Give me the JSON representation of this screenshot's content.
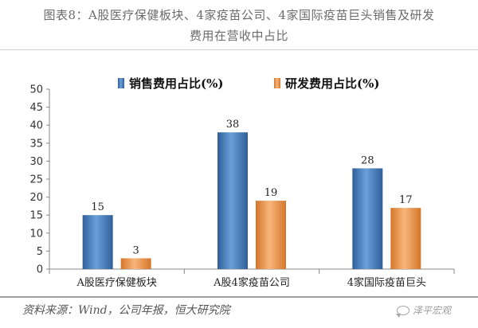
{
  "header": {
    "title_line1": "图表8：A股医疗保健板块、4家疫苗公司、4家国际疫苗巨头销售及研发",
    "title_line2": "费用在营收中占比"
  },
  "footer": {
    "source": "资料来源：Wind，公司年报，恒大研究院",
    "watermark_text": "泽平宏观",
    "watermark_icon": "wechat-bubble-icon"
  },
  "chart_data": {
    "type": "bar",
    "categories": [
      "A股医疗保健板块",
      "A股4家疫苗公司",
      "4家国际疫苗巨头"
    ],
    "series": [
      {
        "name": "销售费用占比(%)",
        "values": [
          15,
          38,
          28
        ],
        "color": "#4a7ebb"
      },
      {
        "name": "研发费用占比(%)",
        "values": [
          3,
          19,
          17
        ],
        "color": "#f09a4a"
      }
    ],
    "data_labels": [
      [
        "15",
        "38",
        "28"
      ],
      [
        "3",
        "19",
        "17"
      ]
    ],
    "ylim": [
      0,
      50
    ],
    "yticks": [
      0,
      5,
      10,
      15,
      20,
      25,
      30,
      35,
      40,
      45,
      50
    ],
    "title": "",
    "xlabel": "",
    "ylabel": "",
    "grid": false,
    "legend_position": "top-center"
  }
}
